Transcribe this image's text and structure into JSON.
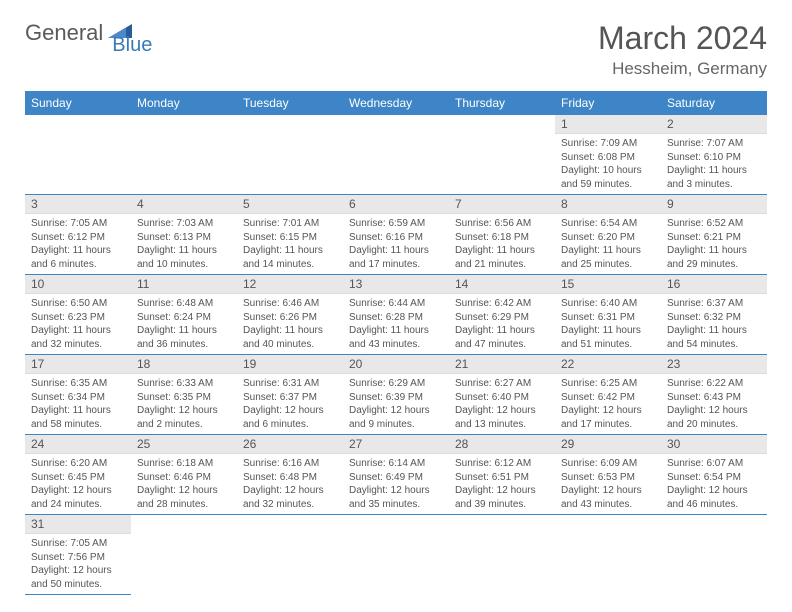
{
  "logo": {
    "word1": "General",
    "word2": "Blue"
  },
  "title": "March 2024",
  "location": "Hessheim, Germany",
  "colors": {
    "header_bg": "#3d85c6",
    "header_text": "#ffffff",
    "row_divider": "#3d85c6",
    "daynum_bg": "#e8e8e8",
    "text": "#555555",
    "logo_gray": "#5a5a5a",
    "logo_blue": "#3a7ab8"
  },
  "day_headers": [
    "Sunday",
    "Monday",
    "Tuesday",
    "Wednesday",
    "Thursday",
    "Friday",
    "Saturday"
  ],
  "weeks": [
    [
      null,
      null,
      null,
      null,
      null,
      {
        "n": "1",
        "sunrise": "Sunrise: 7:09 AM",
        "sunset": "Sunset: 6:08 PM",
        "daylight": "Daylight: 10 hours and 59 minutes."
      },
      {
        "n": "2",
        "sunrise": "Sunrise: 7:07 AM",
        "sunset": "Sunset: 6:10 PM",
        "daylight": "Daylight: 11 hours and 3 minutes."
      }
    ],
    [
      {
        "n": "3",
        "sunrise": "Sunrise: 7:05 AM",
        "sunset": "Sunset: 6:12 PM",
        "daylight": "Daylight: 11 hours and 6 minutes."
      },
      {
        "n": "4",
        "sunrise": "Sunrise: 7:03 AM",
        "sunset": "Sunset: 6:13 PM",
        "daylight": "Daylight: 11 hours and 10 minutes."
      },
      {
        "n": "5",
        "sunrise": "Sunrise: 7:01 AM",
        "sunset": "Sunset: 6:15 PM",
        "daylight": "Daylight: 11 hours and 14 minutes."
      },
      {
        "n": "6",
        "sunrise": "Sunrise: 6:59 AM",
        "sunset": "Sunset: 6:16 PM",
        "daylight": "Daylight: 11 hours and 17 minutes."
      },
      {
        "n": "7",
        "sunrise": "Sunrise: 6:56 AM",
        "sunset": "Sunset: 6:18 PM",
        "daylight": "Daylight: 11 hours and 21 minutes."
      },
      {
        "n": "8",
        "sunrise": "Sunrise: 6:54 AM",
        "sunset": "Sunset: 6:20 PM",
        "daylight": "Daylight: 11 hours and 25 minutes."
      },
      {
        "n": "9",
        "sunrise": "Sunrise: 6:52 AM",
        "sunset": "Sunset: 6:21 PM",
        "daylight": "Daylight: 11 hours and 29 minutes."
      }
    ],
    [
      {
        "n": "10",
        "sunrise": "Sunrise: 6:50 AM",
        "sunset": "Sunset: 6:23 PM",
        "daylight": "Daylight: 11 hours and 32 minutes."
      },
      {
        "n": "11",
        "sunrise": "Sunrise: 6:48 AM",
        "sunset": "Sunset: 6:24 PM",
        "daylight": "Daylight: 11 hours and 36 minutes."
      },
      {
        "n": "12",
        "sunrise": "Sunrise: 6:46 AM",
        "sunset": "Sunset: 6:26 PM",
        "daylight": "Daylight: 11 hours and 40 minutes."
      },
      {
        "n": "13",
        "sunrise": "Sunrise: 6:44 AM",
        "sunset": "Sunset: 6:28 PM",
        "daylight": "Daylight: 11 hours and 43 minutes."
      },
      {
        "n": "14",
        "sunrise": "Sunrise: 6:42 AM",
        "sunset": "Sunset: 6:29 PM",
        "daylight": "Daylight: 11 hours and 47 minutes."
      },
      {
        "n": "15",
        "sunrise": "Sunrise: 6:40 AM",
        "sunset": "Sunset: 6:31 PM",
        "daylight": "Daylight: 11 hours and 51 minutes."
      },
      {
        "n": "16",
        "sunrise": "Sunrise: 6:37 AM",
        "sunset": "Sunset: 6:32 PM",
        "daylight": "Daylight: 11 hours and 54 minutes."
      }
    ],
    [
      {
        "n": "17",
        "sunrise": "Sunrise: 6:35 AM",
        "sunset": "Sunset: 6:34 PM",
        "daylight": "Daylight: 11 hours and 58 minutes."
      },
      {
        "n": "18",
        "sunrise": "Sunrise: 6:33 AM",
        "sunset": "Sunset: 6:35 PM",
        "daylight": "Daylight: 12 hours and 2 minutes."
      },
      {
        "n": "19",
        "sunrise": "Sunrise: 6:31 AM",
        "sunset": "Sunset: 6:37 PM",
        "daylight": "Daylight: 12 hours and 6 minutes."
      },
      {
        "n": "20",
        "sunrise": "Sunrise: 6:29 AM",
        "sunset": "Sunset: 6:39 PM",
        "daylight": "Daylight: 12 hours and 9 minutes."
      },
      {
        "n": "21",
        "sunrise": "Sunrise: 6:27 AM",
        "sunset": "Sunset: 6:40 PM",
        "daylight": "Daylight: 12 hours and 13 minutes."
      },
      {
        "n": "22",
        "sunrise": "Sunrise: 6:25 AM",
        "sunset": "Sunset: 6:42 PM",
        "daylight": "Daylight: 12 hours and 17 minutes."
      },
      {
        "n": "23",
        "sunrise": "Sunrise: 6:22 AM",
        "sunset": "Sunset: 6:43 PM",
        "daylight": "Daylight: 12 hours and 20 minutes."
      }
    ],
    [
      {
        "n": "24",
        "sunrise": "Sunrise: 6:20 AM",
        "sunset": "Sunset: 6:45 PM",
        "daylight": "Daylight: 12 hours and 24 minutes."
      },
      {
        "n": "25",
        "sunrise": "Sunrise: 6:18 AM",
        "sunset": "Sunset: 6:46 PM",
        "daylight": "Daylight: 12 hours and 28 minutes."
      },
      {
        "n": "26",
        "sunrise": "Sunrise: 6:16 AM",
        "sunset": "Sunset: 6:48 PM",
        "daylight": "Daylight: 12 hours and 32 minutes."
      },
      {
        "n": "27",
        "sunrise": "Sunrise: 6:14 AM",
        "sunset": "Sunset: 6:49 PM",
        "daylight": "Daylight: 12 hours and 35 minutes."
      },
      {
        "n": "28",
        "sunrise": "Sunrise: 6:12 AM",
        "sunset": "Sunset: 6:51 PM",
        "daylight": "Daylight: 12 hours and 39 minutes."
      },
      {
        "n": "29",
        "sunrise": "Sunrise: 6:09 AM",
        "sunset": "Sunset: 6:53 PM",
        "daylight": "Daylight: 12 hours and 43 minutes."
      },
      {
        "n": "30",
        "sunrise": "Sunrise: 6:07 AM",
        "sunset": "Sunset: 6:54 PM",
        "daylight": "Daylight: 12 hours and 46 minutes."
      }
    ],
    [
      {
        "n": "31",
        "sunrise": "Sunrise: 7:05 AM",
        "sunset": "Sunset: 7:56 PM",
        "daylight": "Daylight: 12 hours and 50 minutes."
      },
      null,
      null,
      null,
      null,
      null,
      null
    ]
  ]
}
